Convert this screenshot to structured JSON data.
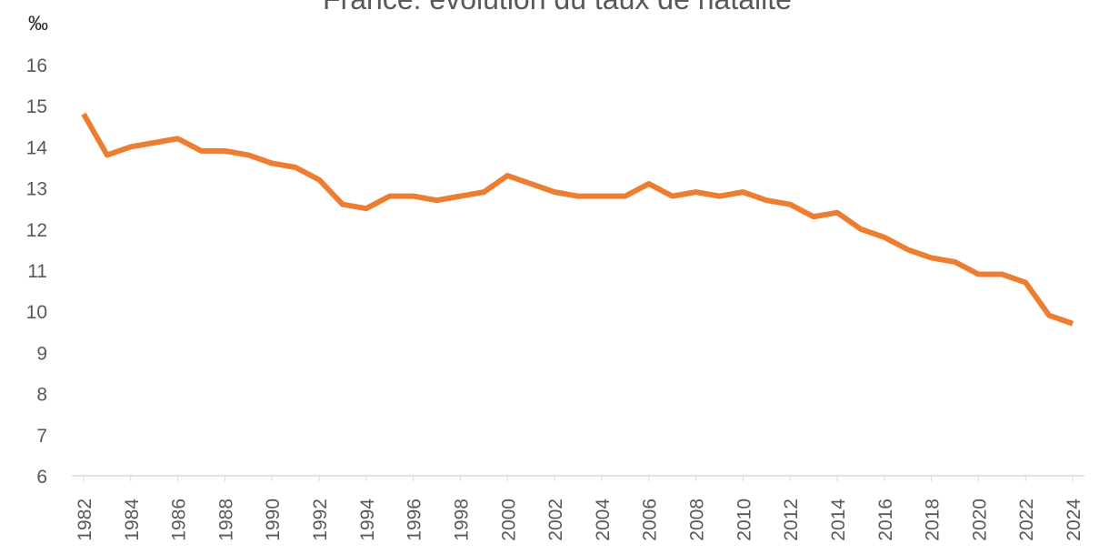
{
  "chart_data": {
    "type": "line",
    "title": "France: évolution du taux de natalité",
    "ylabel": "‰",
    "x": [
      1982,
      1983,
      1984,
      1985,
      1986,
      1987,
      1988,
      1989,
      1990,
      1991,
      1992,
      1993,
      1994,
      1995,
      1996,
      1997,
      1998,
      1999,
      2000,
      2001,
      2002,
      2003,
      2004,
      2005,
      2006,
      2007,
      2008,
      2009,
      2010,
      2011,
      2012,
      2013,
      2014,
      2015,
      2016,
      2017,
      2018,
      2019,
      2020,
      2021,
      2022,
      2023,
      2024
    ],
    "series": [
      {
        "name": "Taux de natalité",
        "color": "#ED7D31",
        "values": [
          14.8,
          13.8,
          14.0,
          14.1,
          14.2,
          13.9,
          13.9,
          13.8,
          13.6,
          13.5,
          13.2,
          12.6,
          12.5,
          12.8,
          12.8,
          12.7,
          12.8,
          12.9,
          13.3,
          13.1,
          12.9,
          12.8,
          12.8,
          12.8,
          13.1,
          12.8,
          12.9,
          12.8,
          12.9,
          12.7,
          12.6,
          12.3,
          12.4,
          12.0,
          11.8,
          11.5,
          11.3,
          11.2,
          10.9,
          10.9,
          10.7,
          9.9,
          9.7
        ]
      }
    ],
    "xlim": [
      1981.5,
      2024.5
    ],
    "xticks": [
      1982,
      1984,
      1986,
      1988,
      1990,
      1992,
      1994,
      1996,
      1998,
      2000,
      2002,
      2004,
      2006,
      2008,
      2010,
      2012,
      2014,
      2016,
      2018,
      2020,
      2022,
      2024
    ],
    "ylim": [
      6,
      16
    ],
    "yticks": [
      6,
      7,
      8,
      9,
      10,
      11,
      12,
      13,
      14,
      15,
      16
    ],
    "grid": false
  }
}
